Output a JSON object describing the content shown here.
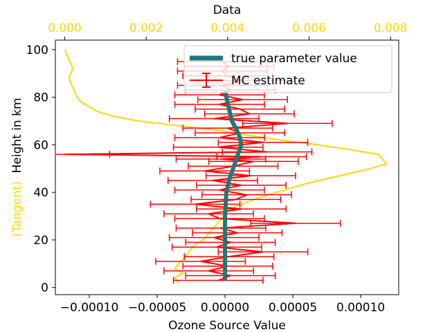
{
  "chart_data": {
    "type": "line",
    "xlabel": "Ozone Source Value",
    "x2label": "Data",
    "ylabel": "Height in km",
    "ylabel_prefix": "(Tangent)",
    "xlim": [
      -0.000125,
      0.000128
    ],
    "x2lim": [
      -0.00023,
      0.0082
    ],
    "ylim": [
      -3,
      104
    ],
    "xticks": [
      -0.0001,
      -5e-05,
      0.0,
      5e-05,
      0.0001
    ],
    "xtick_labels": [
      "−0.00010",
      "−0.00005",
      "0.00000",
      "0.00005",
      "0.00010"
    ],
    "x2ticks": [
      0.0,
      0.002,
      0.004,
      0.006,
      0.008
    ],
    "x2tick_labels": [
      "0.000",
      "0.002",
      "0.004",
      "0.006",
      "0.008"
    ],
    "yticks": [
      0,
      20,
      40,
      60,
      80,
      100
    ],
    "ytick_labels": [
      "0",
      "20",
      "40",
      "60",
      "80",
      "100"
    ],
    "grid": false,
    "legend_position": "top-right",
    "colors": {
      "true_value": "#1a7a7a",
      "mc_estimate": "#ff0000",
      "data": "#ffd700",
      "top_axis": "#ffd700"
    },
    "series": [
      {
        "name": "true parameter value",
        "axis": "bottom",
        "points": [
          [
            0.0,
            3
          ],
          [
            0.0,
            10
          ],
          [
            0.0,
            20
          ],
          [
            0.0,
            30
          ],
          [
            1e-06,
            40
          ],
          [
            3e-06,
            45
          ],
          [
            6e-06,
            50
          ],
          [
            9e-06,
            55
          ],
          [
            1.2e-05,
            60
          ],
          [
            1.1e-05,
            63
          ],
          [
            8e-06,
            67
          ],
          [
            5e-06,
            70
          ],
          [
            3e-06,
            75
          ],
          [
            1e-06,
            80
          ],
          [
            0.0,
            83
          ]
        ]
      },
      {
        "name": "MC estimate",
        "axis": "bottom",
        "x": [
          -5e-06,
          4e-06,
          -1.2e-05,
          2e-06,
          -1.8e-05,
          3e-06,
          2.8e-05,
          -6e-06,
          4e-06,
          -8e-06,
          9e-06,
          -3e-06,
          5.2e-05,
          -4e-06,
          -1.2e-05,
          1.2e-05,
          -2.2e-05,
          8e-06,
          1.6e-05,
          -4e-06,
          1.2e-05,
          -9e-06,
          1.9e-05,
          -1.5e-05,
          6e-06,
          2.1e-05,
          -3e-06,
          2.7e-05,
          -0.000118,
          3.1e-05,
          -5e-06,
          2.8e-05,
          -4e-06,
          1.1e-05,
          2e-06,
          4.6e-05,
          -8e-06,
          1.8e-05,
          1.1e-05,
          -4e-06,
          1.3e-05,
          -4e-06,
          4e-06,
          -2e-06,
          1.3e-05,
          2e-06,
          -2e-06,
          3e-06,
          -2e-06
        ],
        "y": [
          3,
          5,
          7,
          9,
          11,
          13,
          15,
          17,
          19,
          21,
          23,
          25,
          27,
          29,
          31,
          33,
          35,
          37,
          39,
          41,
          43,
          45,
          47,
          49,
          51,
          53,
          54,
          55,
          56,
          57,
          59,
          61,
          63,
          65,
          67,
          69,
          71,
          73,
          75,
          77,
          79,
          81,
          83,
          85,
          87,
          89,
          91,
          93,
          95
        ],
        "xerr": 3.3e-05
      },
      {
        "axis": "top",
        "x": [
          0.0028,
          0.0027,
          0.0029,
          0.0027,
          0.0028,
          0.0029,
          0.003,
          0.0031,
          0.0032,
          0.0034,
          0.0035,
          0.0036,
          0.0037,
          0.0038,
          0.0039,
          0.004,
          0.0042,
          0.0045,
          0.0048,
          0.0052,
          0.0056,
          0.006,
          0.0065,
          0.007,
          0.0075,
          0.0079,
          0.0077,
          0.007,
          0.0062,
          0.0053,
          0.0045,
          0.0038,
          0.0028,
          0.0018,
          0.0012,
          0.0008,
          0.0006,
          0.0004,
          0.0003,
          0.0002,
          0.0001,
          0.0002,
          0.0001,
          0.0
        ],
        "y": [
          2,
          4,
          6,
          8,
          10,
          12,
          14,
          16,
          18,
          20,
          22,
          24,
          26,
          28,
          30,
          32,
          34,
          36,
          38,
          40,
          42,
          44,
          46,
          48,
          50,
          52,
          56,
          58,
          60,
          62,
          64,
          66,
          68,
          70,
          72,
          74,
          76,
          78,
          80,
          84,
          88,
          92,
          96,
          100
        ]
      }
    ]
  }
}
